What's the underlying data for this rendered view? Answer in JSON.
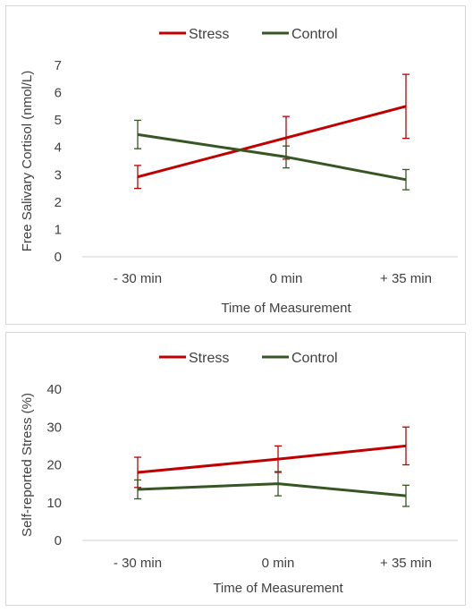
{
  "chart_data": [
    {
      "type": "line",
      "categories": [
        "- 30 min",
        "0 min",
        "+ 35 min"
      ],
      "xlabel": "Time of Measurement",
      "ylabel": "Free Salivary Cortisol (nmol/L)",
      "ylim": [
        0,
        7
      ],
      "yticks": [
        0,
        1,
        2,
        3,
        4,
        5,
        6,
        7
      ],
      "grid": false,
      "legend_position": "top",
      "series": [
        {
          "name": "Stress",
          "color": "#c00000",
          "values": [
            2.92,
            4.35,
            5.5
          ],
          "error": [
            0.42,
            0.78,
            1.17
          ]
        },
        {
          "name": "Control",
          "color": "#375623",
          "values": [
            4.47,
            3.65,
            2.82
          ],
          "error": [
            0.52,
            0.4,
            0.37
          ]
        }
      ]
    },
    {
      "type": "line",
      "categories": [
        "- 30 min",
        "0 min",
        "+ 35 min"
      ],
      "xlabel": "Time of Measurement",
      "ylabel": "Self-reported Stress (%)",
      "ylim": [
        0,
        40
      ],
      "yticks": [
        0,
        10,
        20,
        30,
        40
      ],
      "grid": false,
      "legend_position": "top",
      "series": [
        {
          "name": "Stress",
          "color": "#c00000",
          "values": [
            18,
            21.5,
            25
          ],
          "error": [
            4,
            3.5,
            5
          ]
        },
        {
          "name": "Control",
          "color": "#375623",
          "values": [
            13.5,
            15,
            11.8
          ],
          "error": [
            2.5,
            3.2,
            2.8
          ]
        }
      ]
    }
  ]
}
